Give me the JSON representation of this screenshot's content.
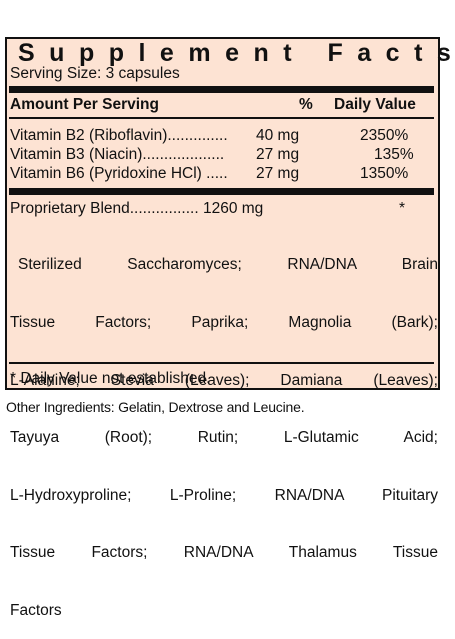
{
  "title": "Supplement Facts",
  "serving_size": "Serving Size: 3 capsules",
  "header": {
    "amount": "Amount Per Serving",
    "percent": "%",
    "daily_value": "Daily Value"
  },
  "vitamins": [
    {
      "label": "Vitamin B2 (Riboflavin)..............",
      "amount": "40 mg",
      "dv": "2350%"
    },
    {
      "label": "Vitamin B3 (Niacin)...................",
      "amount": "27 mg",
      "dv": "135%"
    },
    {
      "label": "Vitamin B6 (Pyridoxine HCl) .....",
      "amount": "27 mg",
      "dv": "1350%"
    }
  ],
  "blend": {
    "label": "Proprietary Blend................ 1260 mg",
    "mark": "*",
    "ingredients_lines": [
      "Sterilized Saccharomyces; RNA/DNA Brain",
      "Tissue Factors; Paprika; Magnolia (Bark);",
      "L-Alanine; Stevia (Leaves); Damiana (Leaves);",
      "Tayuya (Root); Rutin; L-Glutamic Acid;",
      "L-Hydroxyproline; L-Proline; RNA/DNA Pituitary",
      "Tissue Factors; RNA/DNA Thalamus Tissue",
      "Factors"
    ]
  },
  "footnote": "* Daily Value not established.",
  "other_ingredients": "Other Ingredients: Gelatin, Dextrose and Leucine."
}
